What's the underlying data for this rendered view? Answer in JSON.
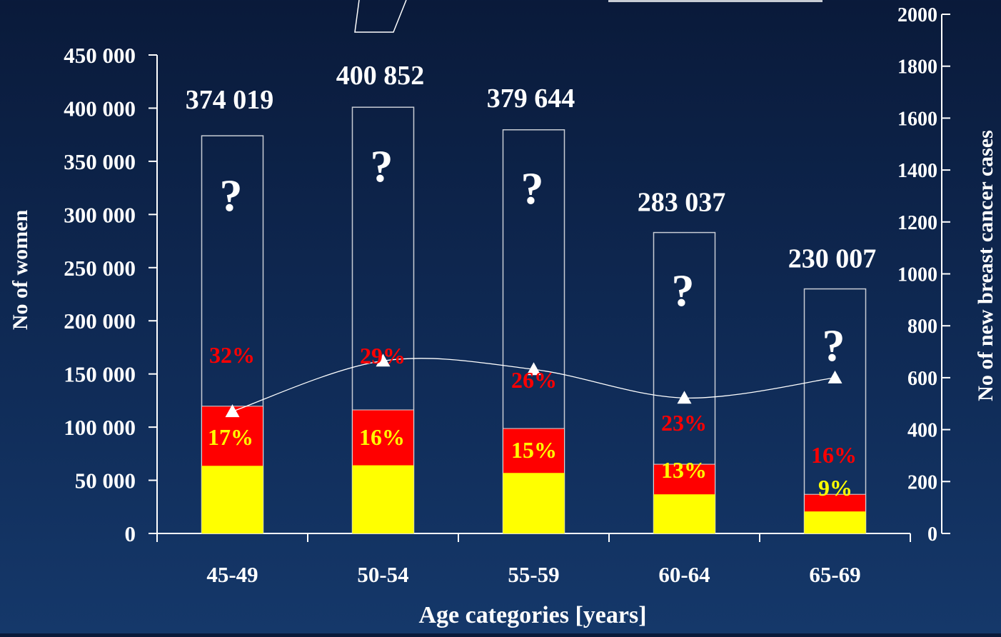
{
  "chart_data": {
    "type": "bar",
    "categories": [
      "45-49",
      "50-54",
      "55-59",
      "60-64",
      "65-69"
    ],
    "totals": [
      374019,
      400852,
      379644,
      283037,
      230007
    ],
    "total_labels": [
      "374 019",
      "400 852",
      "379 644",
      "283 037",
      "230 007"
    ],
    "unknown_marker": "?",
    "series": [
      {
        "values": [
          63600,
          64100,
          56900,
          36800,
          20700
        ],
        "percent_labels": [
          "17%",
          "16%",
          "15%",
          "13%",
          "9%"
        ],
        "color": "#ffff00",
        "label_color": "#ffff00"
      },
      {
        "values": [
          119700,
          116200,
          98700,
          65100,
          36800
        ],
        "percent_labels": [
          "32%",
          "29%",
          "26%",
          "23%",
          "16%"
        ],
        "color": "#ff0000",
        "label_color": "#ff0000"
      }
    ],
    "line_series": {
      "axis": "right",
      "values": [
        470,
        665,
        632,
        522,
        600
      ],
      "marker": "triangle",
      "color": "#ffffff"
    },
    "xlabel": "Age categories [years]",
    "ylabel": "No of women",
    "y2label": "No of new breast cancer cases",
    "ylim": [
      0,
      450000
    ],
    "y2lim": [
      0,
      2000
    ],
    "yticks": [
      0,
      50000,
      100000,
      150000,
      200000,
      250000,
      300000,
      350000,
      400000,
      450000
    ],
    "ytick_labels": [
      "0",
      "50 000",
      "100 000",
      "150 000",
      "200 000",
      "250 000",
      "300 000",
      "350 000",
      "400 000",
      "450 000"
    ],
    "y2ticks": [
      0,
      200,
      400,
      600,
      800,
      1000,
      1200,
      1400,
      1600,
      1800,
      2000
    ],
    "y2tick_labels": [
      "0",
      "200",
      "400",
      "600",
      "800",
      "1000",
      "1200",
      "1400",
      "1600",
      "1800",
      "2000"
    ],
    "axis_color": "#ffffff",
    "text_color": "#ffffff"
  }
}
